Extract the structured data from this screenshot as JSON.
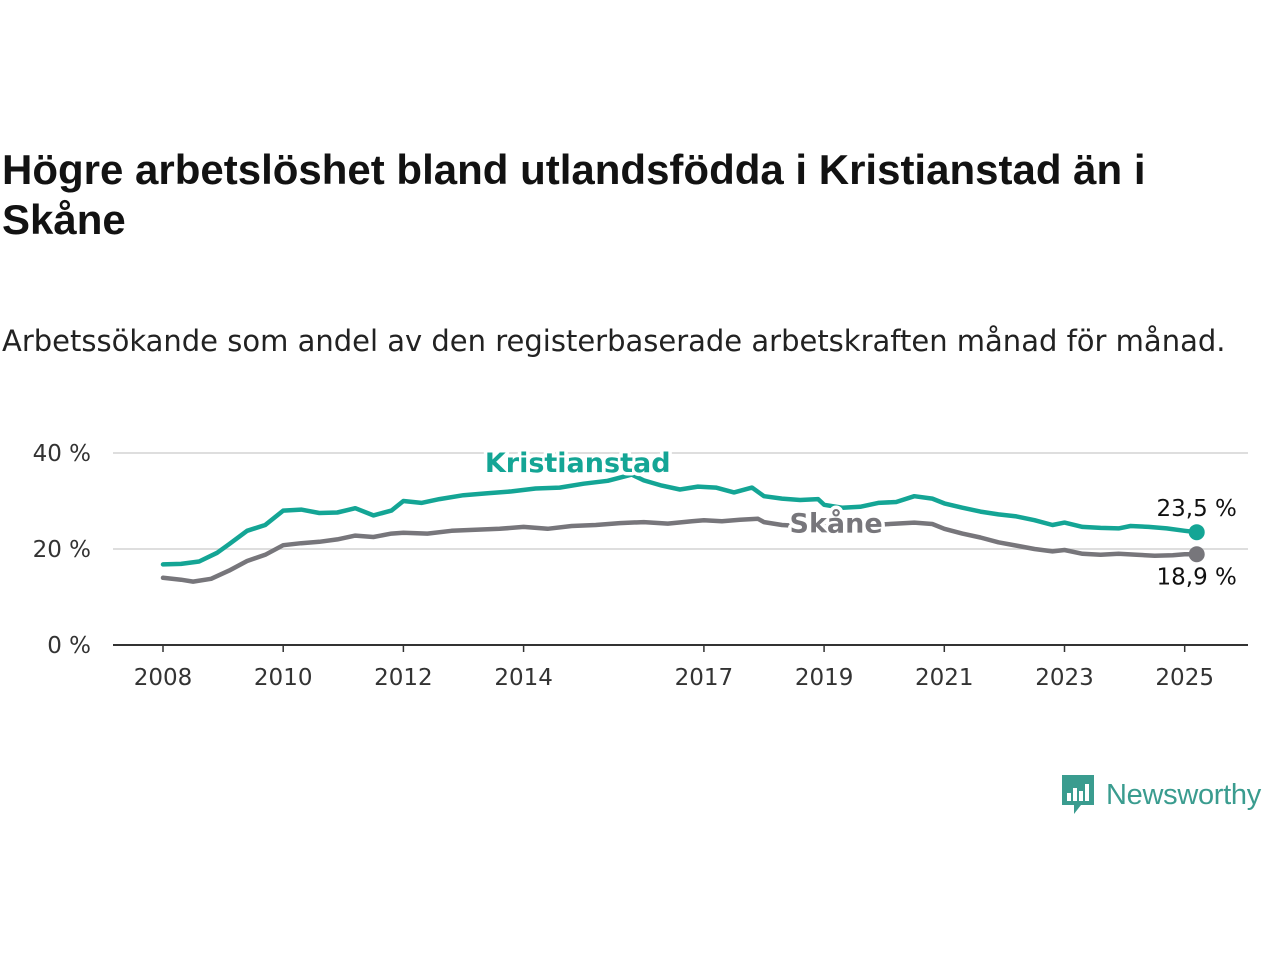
{
  "title": "Högre arbetslöshet bland utlandsfödda i Kristianstad än i Skåne",
  "subtitle": "Arbetssökande som andel av den registerbaserade arbetskraften månad för månad.",
  "brand": {
    "name": "Newsworthy",
    "color": "#3a9c8f",
    "icon": "newsworthy-chart-bubble-icon"
  },
  "chart_data": {
    "type": "line",
    "ylim": [
      0,
      40
    ],
    "xlim": [
      2008,
      2025.2
    ],
    "y_ticks": [
      0,
      20,
      40
    ],
    "y_tick_labels": [
      "0 %",
      "20 %",
      "40 %"
    ],
    "x_ticks": [
      2008,
      2010,
      2012,
      2014,
      2017,
      2019,
      2021,
      2023,
      2025
    ],
    "x_tick_labels": [
      "2008",
      "2010",
      "2012",
      "2014",
      "2017",
      "2019",
      "2021",
      "2023",
      "2025"
    ],
    "grid": "horizontal",
    "legend": "inline labels",
    "series": [
      {
        "name": "Kristianstad",
        "color": "#14a595",
        "end_label": "23,5 %",
        "points": [
          [
            2008.0,
            16.8
          ],
          [
            2008.3,
            16.9
          ],
          [
            2008.6,
            17.4
          ],
          [
            2008.9,
            19.2
          ],
          [
            2009.1,
            21.0
          ],
          [
            2009.4,
            23.8
          ],
          [
            2009.7,
            25.0
          ],
          [
            2010.0,
            28.0
          ],
          [
            2010.3,
            28.2
          ],
          [
            2010.6,
            27.5
          ],
          [
            2010.9,
            27.6
          ],
          [
            2011.2,
            28.5
          ],
          [
            2011.5,
            27.0
          ],
          [
            2011.8,
            28.0
          ],
          [
            2012.0,
            30.0
          ],
          [
            2012.3,
            29.6
          ],
          [
            2012.6,
            30.4
          ],
          [
            2013.0,
            31.2
          ],
          [
            2013.4,
            31.6
          ],
          [
            2013.8,
            32.0
          ],
          [
            2014.2,
            32.6
          ],
          [
            2014.6,
            32.8
          ],
          [
            2015.0,
            33.6
          ],
          [
            2015.4,
            34.2
          ],
          [
            2015.8,
            35.5
          ],
          [
            2016.0,
            34.3
          ],
          [
            2016.3,
            33.2
          ],
          [
            2016.6,
            32.4
          ],
          [
            2016.9,
            33.0
          ],
          [
            2017.2,
            32.8
          ],
          [
            2017.5,
            31.8
          ],
          [
            2017.8,
            32.8
          ],
          [
            2018.0,
            31.0
          ],
          [
            2018.3,
            30.5
          ],
          [
            2018.6,
            30.2
          ],
          [
            2018.9,
            30.4
          ],
          [
            2019.0,
            29.2
          ],
          [
            2019.3,
            28.6
          ],
          [
            2019.6,
            28.8
          ],
          [
            2019.9,
            29.6
          ],
          [
            2020.2,
            29.8
          ],
          [
            2020.5,
            31.0
          ],
          [
            2020.8,
            30.5
          ],
          [
            2021.0,
            29.5
          ],
          [
            2021.3,
            28.6
          ],
          [
            2021.6,
            27.8
          ],
          [
            2021.9,
            27.2
          ],
          [
            2022.2,
            26.8
          ],
          [
            2022.5,
            26.0
          ],
          [
            2022.8,
            25.0
          ],
          [
            2023.0,
            25.5
          ],
          [
            2023.3,
            24.6
          ],
          [
            2023.6,
            24.4
          ],
          [
            2023.9,
            24.3
          ],
          [
            2024.1,
            24.8
          ],
          [
            2024.4,
            24.6
          ],
          [
            2024.7,
            24.3
          ],
          [
            2025.0,
            23.8
          ],
          [
            2025.2,
            23.5
          ]
        ]
      },
      {
        "name": "Skåne",
        "color": "#77767b",
        "end_label": "18,9 %",
        "points": [
          [
            2008.0,
            14.0
          ],
          [
            2008.3,
            13.6
          ],
          [
            2008.5,
            13.2
          ],
          [
            2008.8,
            13.8
          ],
          [
            2009.1,
            15.5
          ],
          [
            2009.4,
            17.5
          ],
          [
            2009.7,
            18.8
          ],
          [
            2010.0,
            20.8
          ],
          [
            2010.3,
            21.2
          ],
          [
            2010.6,
            21.5
          ],
          [
            2010.9,
            22.0
          ],
          [
            2011.2,
            22.8
          ],
          [
            2011.5,
            22.5
          ],
          [
            2011.8,
            23.2
          ],
          [
            2012.0,
            23.4
          ],
          [
            2012.4,
            23.2
          ],
          [
            2012.8,
            23.8
          ],
          [
            2013.2,
            24.0
          ],
          [
            2013.6,
            24.2
          ],
          [
            2014.0,
            24.6
          ],
          [
            2014.4,
            24.2
          ],
          [
            2014.8,
            24.8
          ],
          [
            2015.2,
            25.0
          ],
          [
            2015.6,
            25.4
          ],
          [
            2016.0,
            25.6
          ],
          [
            2016.4,
            25.3
          ],
          [
            2016.8,
            25.8
          ],
          [
            2017.0,
            26.0
          ],
          [
            2017.3,
            25.8
          ],
          [
            2017.6,
            26.1
          ],
          [
            2017.9,
            26.3
          ],
          [
            2018.0,
            25.6
          ],
          [
            2018.3,
            25.0
          ],
          [
            2018.6,
            24.8
          ],
          [
            2018.9,
            24.8
          ],
          [
            2019.2,
            24.6
          ],
          [
            2019.5,
            24.7
          ],
          [
            2019.8,
            25.0
          ],
          [
            2020.2,
            25.3
          ],
          [
            2020.5,
            25.5
          ],
          [
            2020.8,
            25.2
          ],
          [
            2021.0,
            24.2
          ],
          [
            2021.3,
            23.2
          ],
          [
            2021.6,
            22.4
          ],
          [
            2021.9,
            21.4
          ],
          [
            2022.2,
            20.7
          ],
          [
            2022.5,
            20.0
          ],
          [
            2022.8,
            19.5
          ],
          [
            2023.0,
            19.8
          ],
          [
            2023.3,
            19.0
          ],
          [
            2023.6,
            18.8
          ],
          [
            2023.9,
            19.0
          ],
          [
            2024.2,
            18.8
          ],
          [
            2024.5,
            18.6
          ],
          [
            2024.8,
            18.7
          ],
          [
            2025.0,
            18.9
          ],
          [
            2025.2,
            18.9
          ]
        ]
      }
    ]
  }
}
